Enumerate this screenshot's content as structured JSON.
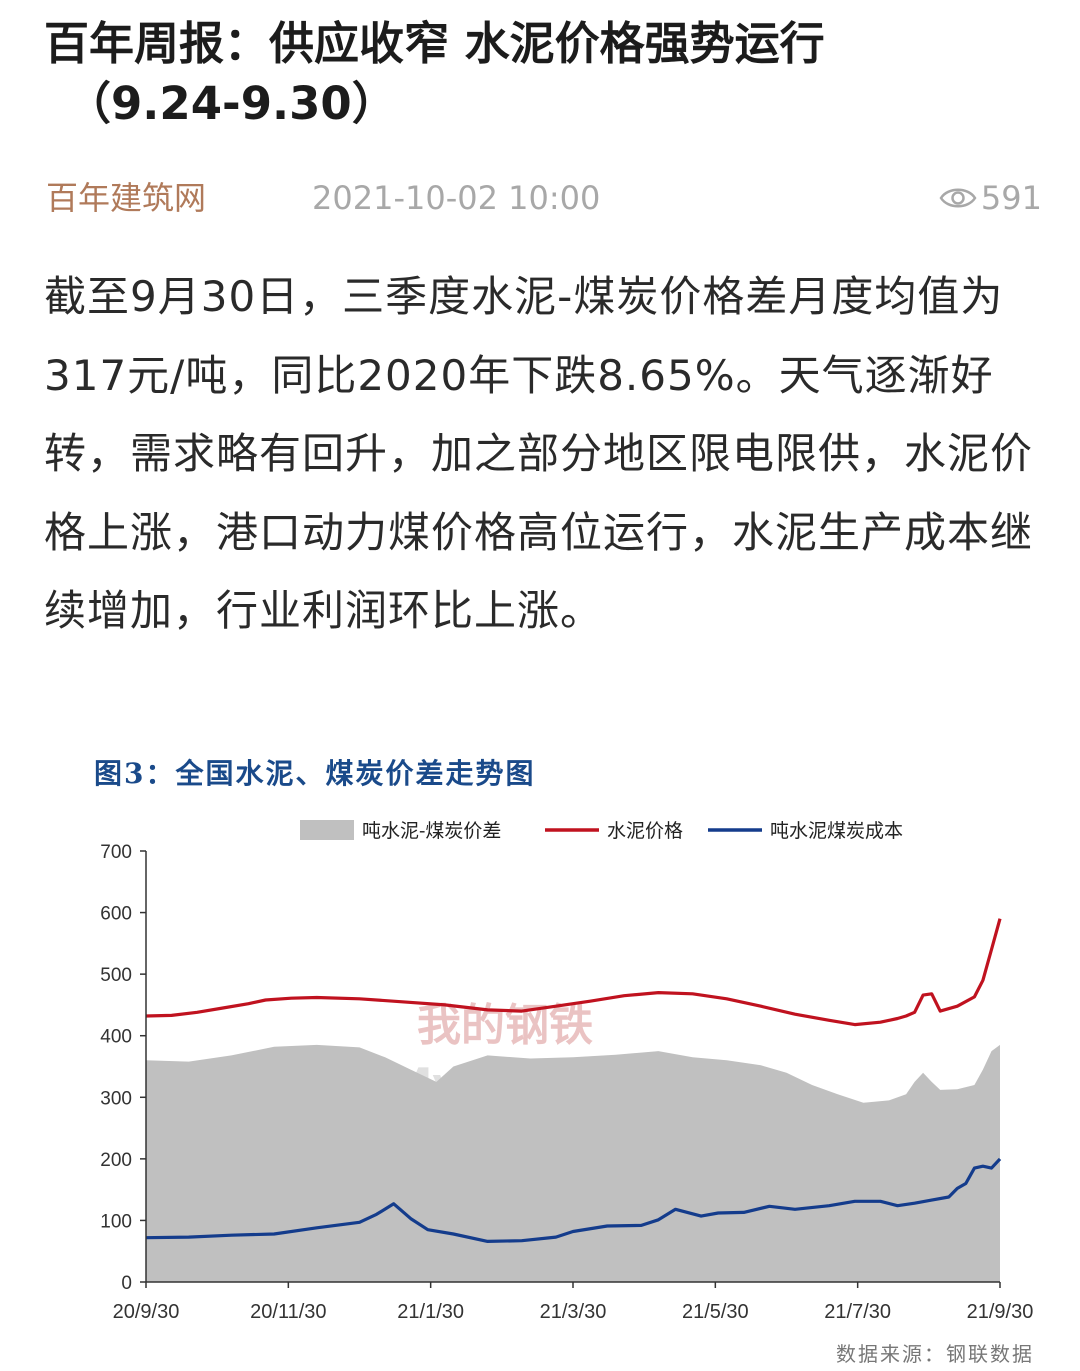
{
  "article": {
    "title_line1": "百年周报：供应收窄 水泥价格强势运行",
    "title_line2": "（9.24-9.30）",
    "source": "百年建筑网",
    "date": "2021-10-02 10:00",
    "views": "591",
    "views_icon": "eye-icon",
    "body": "截至9月30日，三季度水泥-煤炭价格差月度均值为317元/吨，同比2020年下跌8.65%。天气逐渐好转，需求略有回升，加之部分地区限电限供，水泥价格上涨，港口动力煤价格高位运行，水泥生产成本继续增加，行业利润环比上涨。"
  },
  "figure": {
    "title": "图3：全国水泥、煤炭价差走势图",
    "footer": "数据来源：钢联数据",
    "watermark": "我的钢铁 Mysteel.com"
  },
  "colors": {
    "spread_fill": "#c0c0c0",
    "cement_price": "#c0121f",
    "coal_cost": "#143c8c",
    "title_blue": "#1a4a8a",
    "source_brown": "#b07a5a"
  },
  "chart_data": {
    "type": "area",
    "x_tick_labels": [
      "20/9/30",
      "20/11/30",
      "21/1/30",
      "21/3/30",
      "21/5/30",
      "21/7/30",
      "21/9/30"
    ],
    "ylim": [
      0,
      700
    ],
    "y_ticks": [
      0,
      100,
      200,
      300,
      400,
      500,
      600,
      700
    ],
    "legend_position": "top",
    "grid": false,
    "series": [
      {
        "name": "吨水泥-煤炭价差",
        "kind": "area",
        "points": [
          [
            0,
            360
          ],
          [
            5,
            358
          ],
          [
            10,
            368
          ],
          [
            15,
            382
          ],
          [
            20,
            385
          ],
          [
            25,
            381
          ],
          [
            28,
            365
          ],
          [
            31,
            345
          ],
          [
            34,
            325
          ],
          [
            36,
            350
          ],
          [
            40,
            368
          ],
          [
            45,
            363
          ],
          [
            50,
            365
          ],
          [
            55,
            369
          ],
          [
            60,
            375
          ],
          [
            64,
            365
          ],
          [
            68,
            360
          ],
          [
            72,
            352
          ],
          [
            75,
            340
          ],
          [
            78,
            320
          ],
          [
            81,
            305
          ],
          [
            84,
            291
          ],
          [
            87,
            295
          ],
          [
            89,
            305
          ],
          [
            90,
            325
          ],
          [
            91,
            340
          ],
          [
            92,
            325
          ],
          [
            93,
            312
          ],
          [
            95,
            313
          ],
          [
            97,
            320
          ],
          [
            98,
            345
          ],
          [
            99,
            375
          ],
          [
            100,
            385
          ]
        ]
      },
      {
        "name": "水泥价格",
        "kind": "line",
        "points": [
          [
            0,
            432
          ],
          [
            3,
            433
          ],
          [
            6,
            438
          ],
          [
            9,
            445
          ],
          [
            12,
            452
          ],
          [
            14,
            458
          ],
          [
            17,
            461
          ],
          [
            20,
            462
          ],
          [
            25,
            460
          ],
          [
            30,
            455
          ],
          [
            35,
            450
          ],
          [
            40,
            442
          ],
          [
            44,
            440
          ],
          [
            48,
            448
          ],
          [
            52,
            456
          ],
          [
            56,
            465
          ],
          [
            60,
            470
          ],
          [
            64,
            468
          ],
          [
            68,
            460
          ],
          [
            72,
            448
          ],
          [
            76,
            435
          ],
          [
            80,
            425
          ],
          [
            83,
            418
          ],
          [
            86,
            422
          ],
          [
            88,
            428
          ],
          [
            89,
            432
          ],
          [
            90,
            438
          ],
          [
            91,
            466
          ],
          [
            92,
            468
          ],
          [
            93,
            440
          ],
          [
            95,
            448
          ],
          [
            97,
            463
          ],
          [
            98,
            490
          ],
          [
            99,
            540
          ],
          [
            100,
            590
          ]
        ]
      },
      {
        "name": "吨水泥煤炭成本",
        "kind": "line",
        "points": [
          [
            0,
            72
          ],
          [
            5,
            73
          ],
          [
            10,
            76
          ],
          [
            15,
            78
          ],
          [
            20,
            88
          ],
          [
            25,
            97
          ],
          [
            27,
            110
          ],
          [
            29,
            127
          ],
          [
            31,
            103
          ],
          [
            33,
            85
          ],
          [
            36,
            78
          ],
          [
            40,
            66
          ],
          [
            44,
            67
          ],
          [
            48,
            73
          ],
          [
            50,
            82
          ],
          [
            54,
            91
          ],
          [
            58,
            92
          ],
          [
            60,
            101
          ],
          [
            62,
            118
          ],
          [
            65,
            107
          ],
          [
            67,
            112
          ],
          [
            70,
            113
          ],
          [
            73,
            123
          ],
          [
            76,
            118
          ],
          [
            80,
            124
          ],
          [
            83,
            131
          ],
          [
            86,
            131
          ],
          [
            88,
            124
          ],
          [
            90,
            128
          ],
          [
            92,
            133
          ],
          [
            94,
            138
          ],
          [
            95,
            152
          ],
          [
            96,
            160
          ],
          [
            97,
            185
          ],
          [
            98,
            188
          ],
          [
            99,
            185
          ],
          [
            100,
            200
          ]
        ]
      }
    ]
  }
}
